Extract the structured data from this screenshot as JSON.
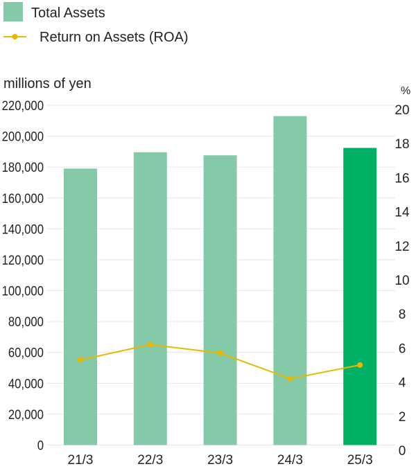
{
  "chart_data": {
    "type": "bar",
    "categories": [
      "21/3",
      "22/3",
      "23/3",
      "24/3",
      "25/3"
    ],
    "series": [
      {
        "name": "Total Assets",
        "kind": "bar",
        "axis": "left",
        "values": [
          179000,
          189600,
          187600,
          213000,
          192400
        ],
        "color": "#84c9a8",
        "highlight_color": "#00b064",
        "highlight_index": 4
      },
      {
        "name": "Return on Assets (ROA)",
        "kind": "line",
        "axis": "right",
        "values": [
          5.3,
          6.2,
          5.7,
          4.2,
          5.0
        ],
        "color": "#e8b800"
      }
    ],
    "left_axis": {
      "label": "millions of yen",
      "ylim": [
        0,
        220000
      ],
      "ticks": [
        0,
        20000,
        40000,
        60000,
        80000,
        100000,
        120000,
        140000,
        160000,
        180000,
        200000,
        220000
      ],
      "tick_labels": [
        "0",
        "20,000",
        "40,000",
        "60,000",
        "80,000",
        "100,000",
        "120,000",
        "140,000",
        "160,000",
        "180,000",
        "200,000",
        "220,000"
      ]
    },
    "right_axis": {
      "label": "%",
      "ylim": [
        0,
        20
      ],
      "ticks": [
        0,
        2,
        4,
        6,
        8,
        10,
        12,
        14,
        16,
        18,
        20
      ],
      "tick_labels": [
        "0",
        "2",
        "4",
        "6",
        "8",
        "10",
        "12",
        "14",
        "16",
        "18",
        "20"
      ]
    },
    "grid": true,
    "legend_placement": "top-left"
  }
}
